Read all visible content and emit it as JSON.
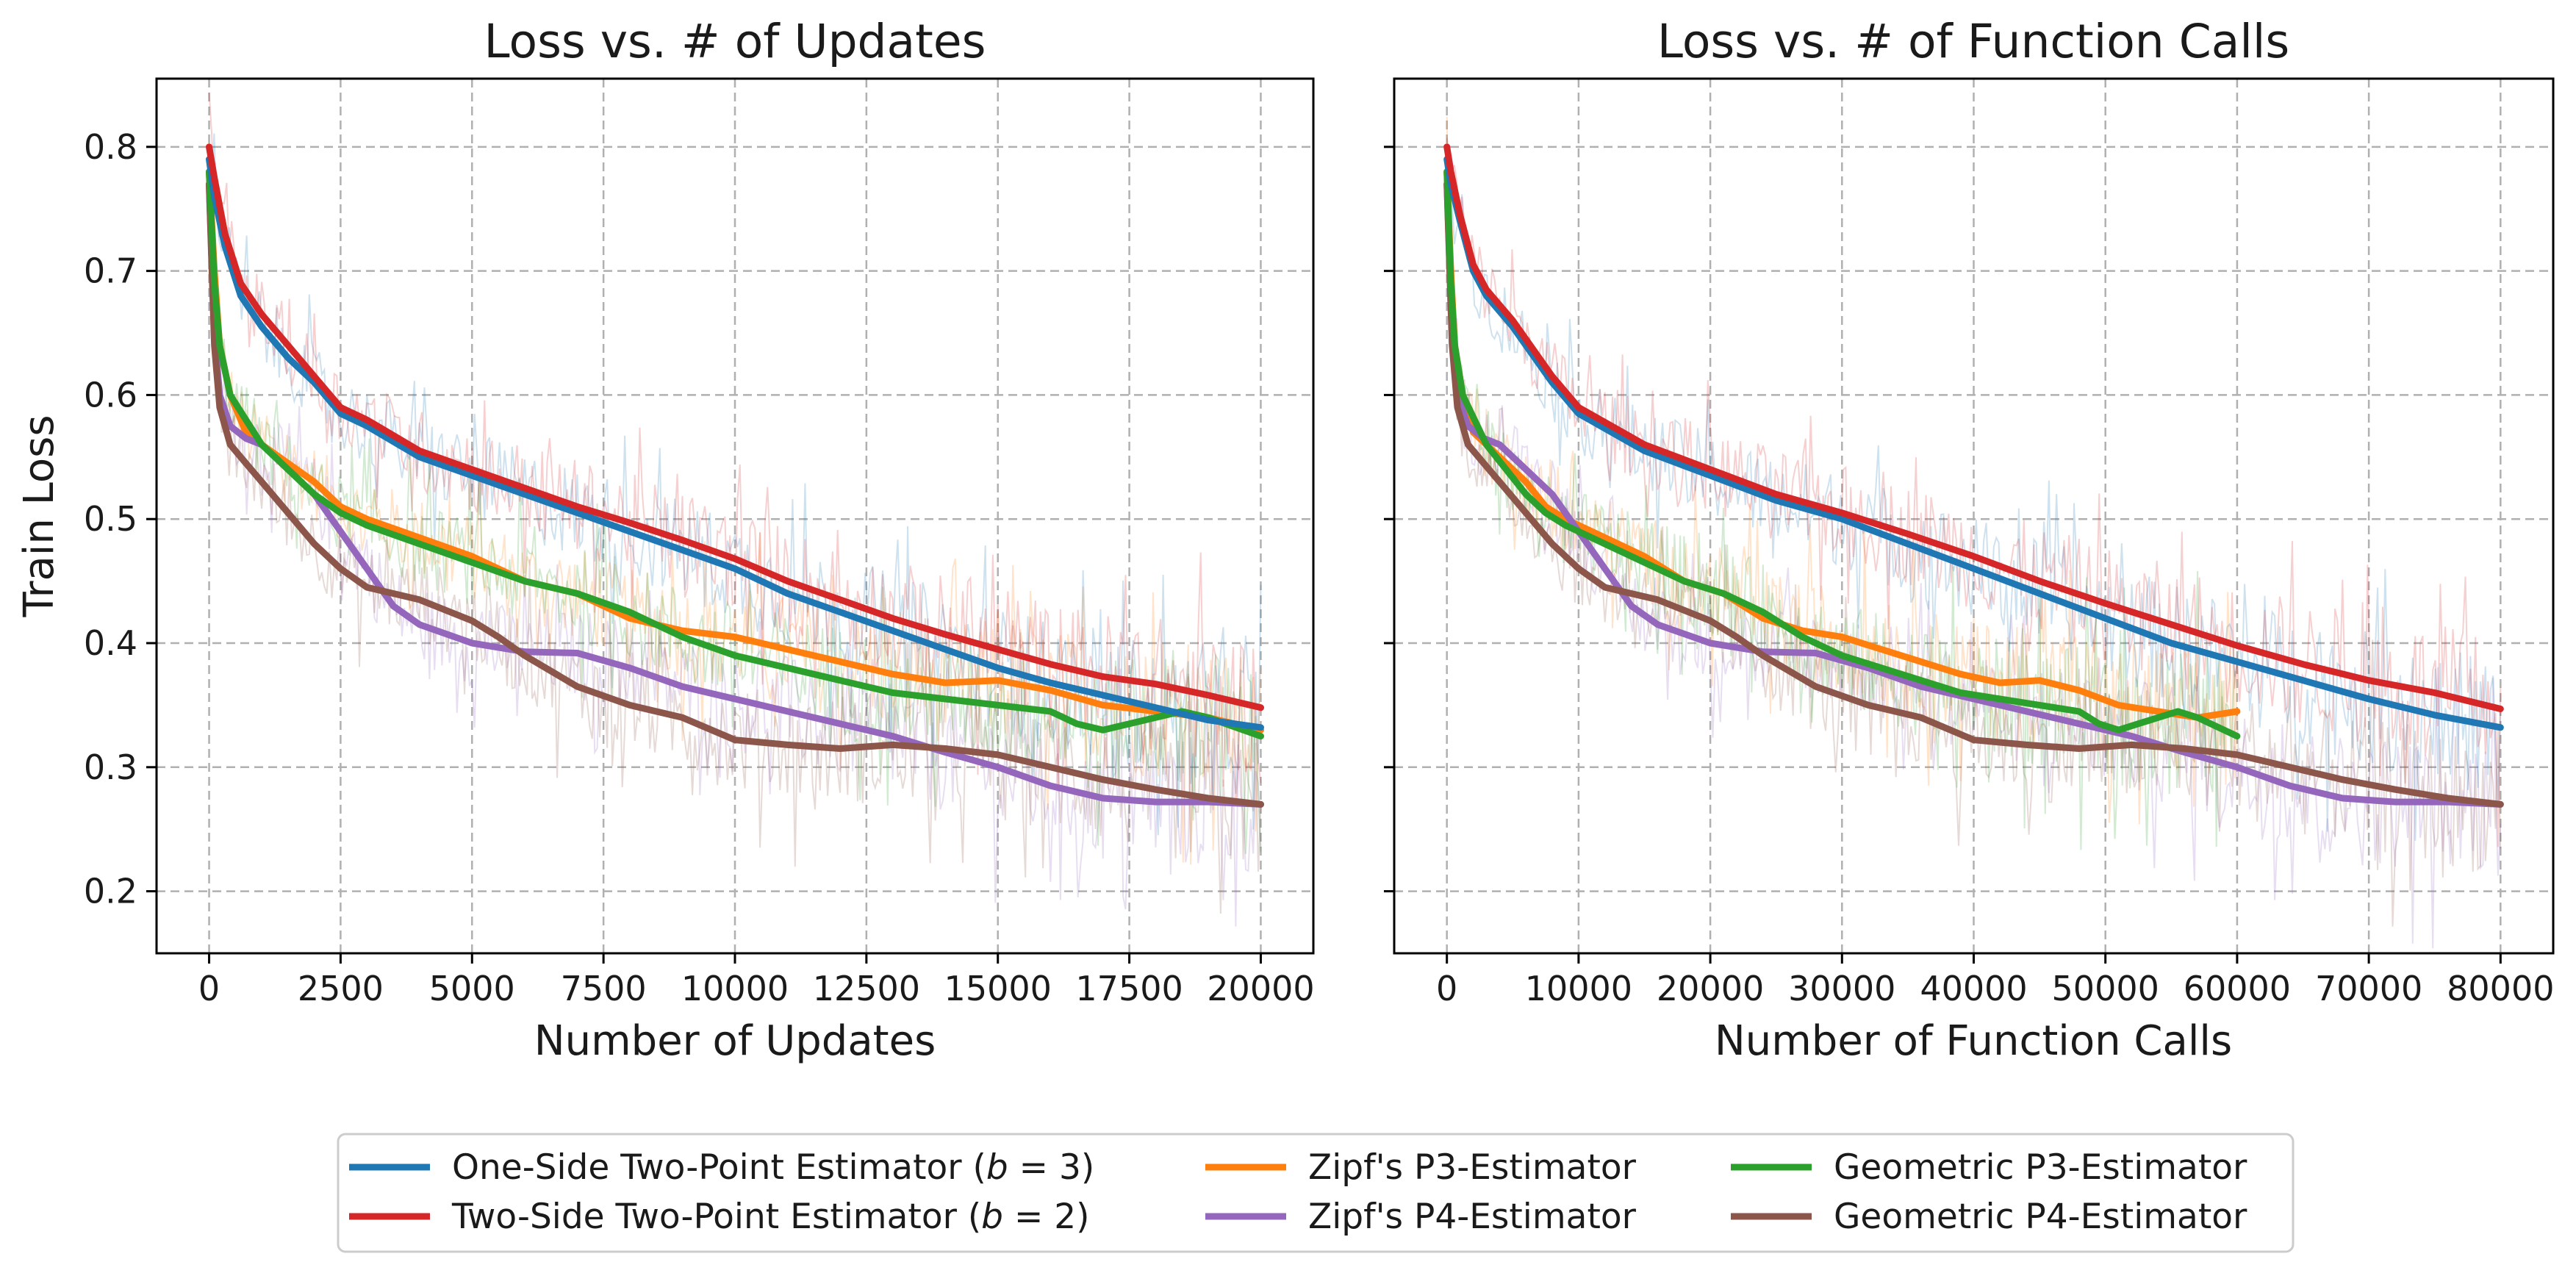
{
  "chart_data": [
    {
      "type": "line",
      "title": "Loss vs. # of Updates",
      "xlabel": "Number of Updates",
      "ylabel": "Train Loss",
      "xlim": [
        -1000,
        21000
      ],
      "ylim": [
        0.15,
        0.855
      ],
      "xticks": [
        0,
        2500,
        5000,
        7500,
        10000,
        12500,
        15000,
        17500,
        20000
      ],
      "xtick_labels": [
        "0",
        "2500",
        "5000",
        "7500",
        "10000",
        "12500",
        "15000",
        "17500",
        "20000"
      ],
      "yticks": [
        0.2,
        0.3,
        0.4,
        0.5,
        0.6,
        0.7,
        0.8
      ],
      "ytick_labels": [
        "0.2",
        "0.3",
        "0.4",
        "0.5",
        "0.6",
        "0.7",
        "0.8"
      ],
      "grid": true,
      "series": [
        {
          "key": "one_side",
          "x": [
            0,
            100,
            300,
            600,
            1000,
            1500,
            2000,
            2500,
            3000,
            4000,
            5000,
            6000,
            7000,
            8000,
            9000,
            10000,
            11000,
            12000,
            13000,
            14000,
            15000,
            16000,
            17000,
            18000,
            19000,
            20000
          ],
          "y": [
            0.79,
            0.76,
            0.72,
            0.68,
            0.655,
            0.63,
            0.61,
            0.585,
            0.575,
            0.55,
            0.535,
            0.52,
            0.505,
            0.49,
            0.475,
            0.46,
            0.44,
            0.425,
            0.41,
            0.395,
            0.38,
            0.368,
            0.358,
            0.348,
            0.338,
            0.332
          ]
        },
        {
          "key": "two_side",
          "x": [
            0,
            100,
            300,
            600,
            1000,
            1500,
            2000,
            2500,
            3000,
            4000,
            5000,
            6000,
            7000,
            8000,
            9000,
            10000,
            11000,
            12000,
            13000,
            14000,
            15000,
            16000,
            17000,
            18000,
            19000,
            20000
          ],
          "y": [
            0.8,
            0.775,
            0.73,
            0.69,
            0.665,
            0.64,
            0.615,
            0.59,
            0.58,
            0.555,
            0.54,
            0.525,
            0.51,
            0.497,
            0.483,
            0.468,
            0.45,
            0.435,
            0.42,
            0.407,
            0.395,
            0.383,
            0.373,
            0.367,
            0.358,
            0.348
          ]
        },
        {
          "key": "zipf_p3",
          "x": [
            0,
            100,
            200,
            400,
            700,
            1000,
            1500,
            2000,
            2500,
            3000,
            4000,
            5000,
            6000,
            7000,
            8000,
            9000,
            10000,
            11000,
            12000,
            13000,
            14000,
            15000,
            16000,
            17000,
            18000,
            19000,
            20000
          ],
          "y": [
            0.78,
            0.7,
            0.64,
            0.6,
            0.57,
            0.56,
            0.545,
            0.53,
            0.51,
            0.5,
            0.485,
            0.47,
            0.45,
            0.44,
            0.42,
            0.41,
            0.405,
            0.395,
            0.385,
            0.375,
            0.368,
            0.37,
            0.362,
            0.35,
            0.345,
            0.34,
            0.33
          ]
        },
        {
          "key": "zipf_p4",
          "x": [
            0,
            100,
            200,
            400,
            700,
            1000,
            1500,
            2000,
            2500,
            3000,
            3500,
            4000,
            5000,
            6000,
            7000,
            8000,
            9000,
            10000,
            11000,
            12000,
            13000,
            14000,
            15000,
            16000,
            17000,
            18000,
            19000,
            20000
          ],
          "y": [
            0.77,
            0.65,
            0.6,
            0.575,
            0.565,
            0.56,
            0.54,
            0.52,
            0.49,
            0.46,
            0.43,
            0.415,
            0.4,
            0.393,
            0.392,
            0.38,
            0.365,
            0.355,
            0.345,
            0.335,
            0.325,
            0.312,
            0.3,
            0.285,
            0.275,
            0.272,
            0.272,
            0.27
          ]
        },
        {
          "key": "geo_p3",
          "x": [
            0,
            100,
            200,
            400,
            700,
            1000,
            1500,
            2000,
            2500,
            3000,
            4000,
            5000,
            6000,
            7000,
            8000,
            9000,
            10000,
            11000,
            12000,
            13000,
            14000,
            15000,
            16000,
            16500,
            17000,
            17500,
            18000,
            18500,
            19000,
            20000
          ],
          "y": [
            0.78,
            0.69,
            0.64,
            0.6,
            0.58,
            0.56,
            0.54,
            0.52,
            0.505,
            0.495,
            0.48,
            0.465,
            0.45,
            0.44,
            0.425,
            0.405,
            0.39,
            0.38,
            0.37,
            0.36,
            0.355,
            0.35,
            0.345,
            0.335,
            0.33,
            0.335,
            0.34,
            0.345,
            0.34,
            0.325
          ]
        },
        {
          "key": "geo_p4",
          "x": [
            0,
            100,
            200,
            400,
            700,
            1000,
            1500,
            2000,
            2500,
            3000,
            4000,
            5000,
            5500,
            6000,
            7000,
            8000,
            9000,
            10000,
            11000,
            12000,
            13000,
            14000,
            15000,
            16000,
            17000,
            18000,
            19000,
            20000
          ],
          "y": [
            0.77,
            0.64,
            0.59,
            0.56,
            0.545,
            0.53,
            0.505,
            0.48,
            0.46,
            0.445,
            0.435,
            0.418,
            0.405,
            0.39,
            0.365,
            0.35,
            0.34,
            0.322,
            0.318,
            0.315,
            0.318,
            0.315,
            0.31,
            0.3,
            0.29,
            0.282,
            0.275,
            0.27
          ]
        }
      ]
    },
    {
      "type": "line",
      "title": "Loss vs. # of Function Calls",
      "xlabel": "Number of Function Calls",
      "ylabel": "",
      "xlim": [
        -4000,
        84000
      ],
      "ylim": [
        0.15,
        0.855
      ],
      "xticks": [
        0,
        10000,
        20000,
        30000,
        40000,
        50000,
        60000,
        70000,
        80000
      ],
      "xtick_labels": [
        "0",
        "10000",
        "20000",
        "30000",
        "40000",
        "50000",
        "60000",
        "70000",
        "80000"
      ],
      "yticks": [
        0.2,
        0.3,
        0.4,
        0.5,
        0.6,
        0.7,
        0.8
      ],
      "ytick_labels": [
        "",
        "",
        "",
        "",
        "",
        "",
        ""
      ],
      "grid": true,
      "series": [
        {
          "key": "one_side",
          "x": [
            0,
            300,
            1000,
            2000,
            3000,
            5000,
            8000,
            10000,
            15000,
            20000,
            25000,
            30000,
            35000,
            40000,
            45000,
            50000,
            55000,
            60000,
            65000,
            70000,
            75000,
            80000
          ],
          "y": [
            0.79,
            0.77,
            0.74,
            0.7,
            0.68,
            0.655,
            0.61,
            0.585,
            0.555,
            0.535,
            0.515,
            0.5,
            0.48,
            0.46,
            0.44,
            0.42,
            0.4,
            0.385,
            0.37,
            0.355,
            0.342,
            0.332
          ]
        },
        {
          "key": "two_side",
          "x": [
            0,
            300,
            1000,
            2000,
            3000,
            5000,
            8000,
            10000,
            15000,
            20000,
            25000,
            30000,
            35000,
            40000,
            45000,
            50000,
            55000,
            60000,
            65000,
            70000,
            75000,
            80000
          ],
          "y": [
            0.8,
            0.78,
            0.745,
            0.705,
            0.685,
            0.66,
            0.615,
            0.59,
            0.56,
            0.54,
            0.52,
            0.505,
            0.488,
            0.47,
            0.45,
            0.432,
            0.415,
            0.398,
            0.383,
            0.37,
            0.36,
            0.347
          ]
        },
        {
          "key": "zipf_p3",
          "x": [
            0,
            300,
            600,
            1200,
            2000,
            3000,
            4500,
            6000,
            7500,
            9000,
            12000,
            15000,
            18000,
            21000,
            24000,
            27000,
            30000,
            33000,
            36000,
            39000,
            42000,
            45000,
            48000,
            51000,
            54000,
            57000,
            60000
          ],
          "y": [
            0.78,
            0.7,
            0.64,
            0.6,
            0.57,
            0.56,
            0.545,
            0.53,
            0.51,
            0.5,
            0.485,
            0.47,
            0.45,
            0.44,
            0.42,
            0.41,
            0.405,
            0.395,
            0.385,
            0.375,
            0.368,
            0.37,
            0.362,
            0.35,
            0.345,
            0.34,
            0.345
          ]
        },
        {
          "key": "zipf_p4",
          "x": [
            0,
            400,
            800,
            1600,
            2800,
            4000,
            6000,
            8000,
            10000,
            12000,
            14000,
            16000,
            20000,
            24000,
            28000,
            32000,
            36000,
            40000,
            44000,
            48000,
            52000,
            56000,
            60000,
            64000,
            68000,
            72000,
            76000,
            80000
          ],
          "y": [
            0.77,
            0.65,
            0.6,
            0.575,
            0.565,
            0.56,
            0.54,
            0.52,
            0.49,
            0.46,
            0.43,
            0.415,
            0.4,
            0.393,
            0.392,
            0.38,
            0.365,
            0.355,
            0.345,
            0.335,
            0.325,
            0.312,
            0.3,
            0.285,
            0.275,
            0.272,
            0.272,
            0.27
          ]
        },
        {
          "key": "geo_p3",
          "x": [
            0,
            300,
            600,
            1200,
            2100,
            3000,
            4500,
            6000,
            7500,
            9000,
            12000,
            15000,
            18000,
            21000,
            24000,
            27000,
            30000,
            33000,
            36000,
            39000,
            42000,
            45000,
            48000,
            49500,
            51000,
            52500,
            54000,
            55500,
            57000,
            60000
          ],
          "y": [
            0.78,
            0.69,
            0.64,
            0.6,
            0.58,
            0.56,
            0.54,
            0.52,
            0.505,
            0.495,
            0.48,
            0.465,
            0.45,
            0.44,
            0.425,
            0.405,
            0.39,
            0.38,
            0.37,
            0.36,
            0.355,
            0.35,
            0.345,
            0.335,
            0.33,
            0.335,
            0.34,
            0.345,
            0.34,
            0.325
          ]
        },
        {
          "key": "geo_p4",
          "x": [
            0,
            400,
            800,
            1600,
            2800,
            4000,
            6000,
            8000,
            10000,
            12000,
            16000,
            20000,
            22000,
            24000,
            28000,
            32000,
            36000,
            40000,
            44000,
            48000,
            52000,
            56000,
            60000,
            64000,
            68000,
            72000,
            76000,
            80000
          ],
          "y": [
            0.77,
            0.64,
            0.59,
            0.56,
            0.545,
            0.53,
            0.505,
            0.48,
            0.46,
            0.445,
            0.435,
            0.418,
            0.405,
            0.39,
            0.365,
            0.35,
            0.34,
            0.322,
            0.318,
            0.315,
            0.318,
            0.315,
            0.31,
            0.3,
            0.29,
            0.282,
            0.275,
            0.27
          ]
        }
      ]
    }
  ],
  "legend": {
    "placement": "bottom-center",
    "entries": [
      {
        "key": "one_side",
        "label": "One-Side Two-Point Estimator (b = 3)",
        "prefix": "One-Side Two-Point Estimator (",
        "var": "b",
        "suffix": " = 3)",
        "color": "#1f77b4"
      },
      {
        "key": "two_side",
        "label": "Two-Side Two-Point Estimator (b = 2)",
        "prefix": "Two-Side Two-Point Estimator (",
        "var": "b",
        "suffix": " = 2)",
        "color": "#d62728"
      },
      {
        "key": "zipf_p3",
        "label": "Zipf's P3-Estimator",
        "prefix": "Zipf's P3-Estimator",
        "var": "",
        "suffix": "",
        "color": "#ff7f0e"
      },
      {
        "key": "zipf_p4",
        "label": "Zipf's P4-Estimator",
        "prefix": "Zipf's P4-Estimator",
        "var": "",
        "suffix": "",
        "color": "#9467bd"
      },
      {
        "key": "geo_p3",
        "label": "Geometric P3-Estimator",
        "prefix": "Geometric P3-Estimator",
        "var": "",
        "suffix": "",
        "color": "#2ca02c"
      },
      {
        "key": "geo_p4",
        "label": "Geometric P4-Estimator",
        "prefix": "Geometric P4-Estimator",
        "var": "",
        "suffix": "",
        "color": "#8c564b"
      }
    ]
  }
}
